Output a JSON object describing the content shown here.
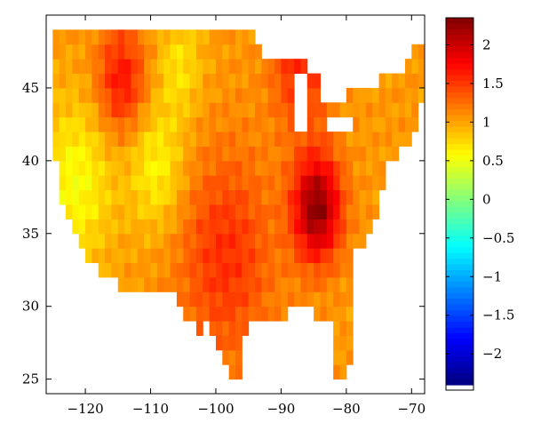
{
  "chart_data": {
    "type": "heatmap",
    "title": "",
    "xlabel": "",
    "ylabel": "",
    "xlim": [
      -126,
      -68
    ],
    "ylim": [
      24,
      50
    ],
    "x_ticks": [
      -120,
      -110,
      -100,
      -90,
      -80,
      -70
    ],
    "x_tick_labels": [
      "−120",
      "−110",
      "−100",
      "−90",
      "−80",
      "−70"
    ],
    "y_ticks": [
      25,
      30,
      35,
      40,
      45
    ],
    "y_tick_labels": [
      "25",
      "30",
      "35",
      "40",
      "45"
    ],
    "colorbar": {
      "colormap": "jet",
      "range": [
        -2.4,
        2.35
      ],
      "ticks": [
        2,
        1.5,
        1,
        0.5,
        0,
        -0.5,
        -1,
        -1.5,
        -2
      ],
      "tick_labels": [
        "2",
        "1.5",
        "1",
        "0.5",
        "0",
        "−0.5",
        "−1",
        "−1.5",
        "−2"
      ]
    },
    "grid_resolution_deg": 1,
    "region": "contiguous United States",
    "value_field": {
      "peaks": [
        {
          "lon": -84.5,
          "lat": 36.8,
          "value": 2.3,
          "spread": 2.6
        },
        {
          "lon": -114.5,
          "lat": 45.5,
          "value": 1.7,
          "spread": 2.6
        },
        {
          "lon": -98.5,
          "lat": 33.5,
          "value": 1.55,
          "spread": 5.0
        },
        {
          "lon": -87.0,
          "lat": 46.5,
          "value": 1.6,
          "spread": 3.0
        }
      ],
      "lows": [
        {
          "lon": -121.5,
          "lat": 38.5,
          "value": 0.55,
          "spread": 4.0
        },
        {
          "lon": -109.0,
          "lat": 39.5,
          "value": 0.6,
          "spread": 3.0
        },
        {
          "lon": -105.5,
          "lat": 46.5,
          "value": 0.7,
          "spread": 2.5
        }
      ],
      "base_value": 1.05
    }
  }
}
